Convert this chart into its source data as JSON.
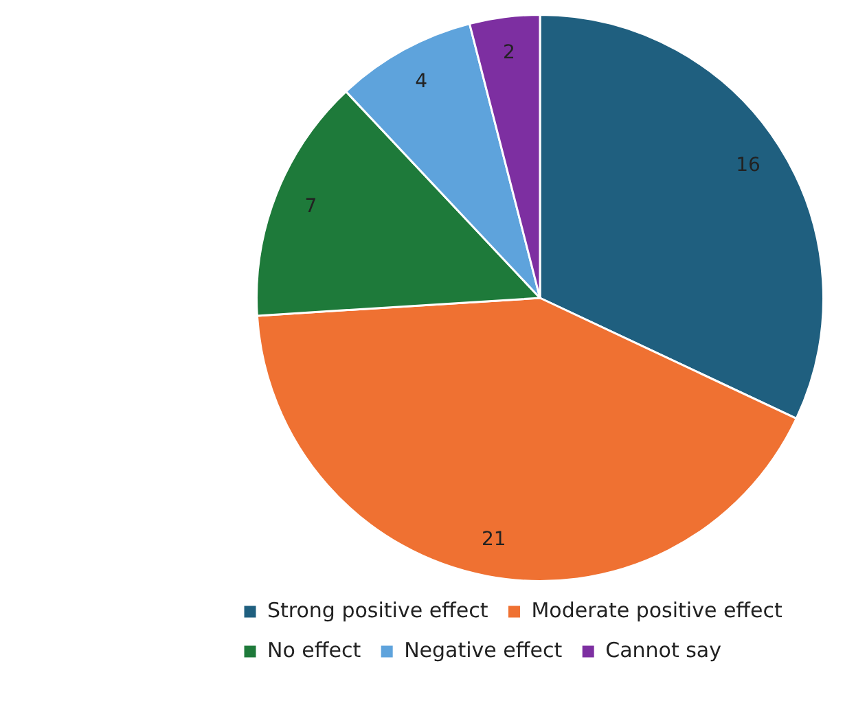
{
  "chart_data": {
    "type": "pie",
    "categories": [
      "Strong positive effect",
      "Moderate positive effect",
      "No effect",
      "Negative effect",
      "Cannot say"
    ],
    "values": [
      16,
      21,
      7,
      4,
      2
    ],
    "colors": [
      "#1f5f7f",
      "#ef7132",
      "#1e7a3a",
      "#5ea3dc",
      "#7d2fa1"
    ],
    "data_labels": true,
    "legend": "bottom"
  }
}
